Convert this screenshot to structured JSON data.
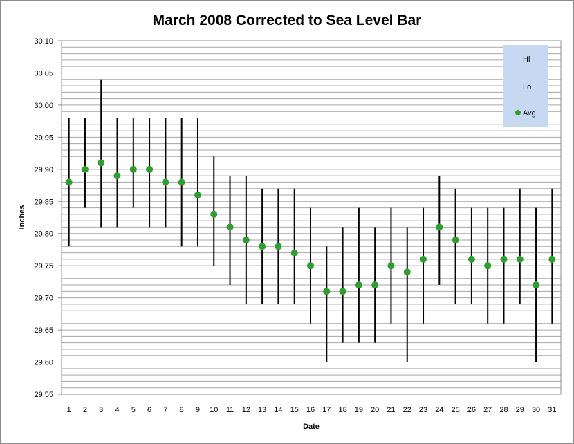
{
  "chart_data": {
    "type": "scatter",
    "title": "March 2008 Corrected to Sea Level Bar",
    "xlabel": "Date",
    "ylabel": "Inches",
    "ylim": [
      29.55,
      30.1
    ],
    "y_ticks": [
      "30.10",
      "30.05",
      "30.00",
      "29.95",
      "29.90",
      "29.85",
      "29.80",
      "29.75",
      "29.70",
      "29.65",
      "29.60",
      "29.55"
    ],
    "grid": "horizontal minor gridlines every 0.01",
    "legend_position": "top-right",
    "colors": {
      "avg": "#2e9e2e",
      "hilo": "#000000",
      "legend_bg": "#c6d9f1",
      "grid": "#a6a6a6"
    },
    "x": [
      1,
      2,
      3,
      4,
      5,
      6,
      7,
      8,
      9,
      10,
      11,
      12,
      13,
      14,
      15,
      16,
      17,
      18,
      19,
      20,
      21,
      22,
      23,
      24,
      25,
      26,
      27,
      28,
      29,
      30,
      31
    ],
    "series": [
      {
        "name": "Hi",
        "values": [
          29.98,
          29.98,
          30.04,
          29.98,
          29.98,
          29.98,
          29.98,
          29.98,
          29.98,
          29.92,
          29.89,
          29.89,
          29.87,
          29.87,
          29.87,
          29.84,
          29.78,
          29.81,
          29.84,
          29.81,
          29.84,
          29.81,
          29.84,
          29.89,
          29.87,
          29.84,
          29.84,
          29.84,
          29.87,
          29.84,
          29.87
        ]
      },
      {
        "name": "Lo",
        "values": [
          29.78,
          29.84,
          29.81,
          29.81,
          29.84,
          29.81,
          29.81,
          29.78,
          29.78,
          29.75,
          29.72,
          29.69,
          29.69,
          29.69,
          29.69,
          29.66,
          29.6,
          29.63,
          29.63,
          29.63,
          29.66,
          29.6,
          29.66,
          29.72,
          29.69,
          29.69,
          29.66,
          29.66,
          29.69,
          29.6,
          29.66
        ]
      },
      {
        "name": "Avg",
        "values": [
          29.88,
          29.9,
          29.91,
          29.89,
          29.9,
          29.9,
          29.88,
          29.88,
          29.86,
          29.83,
          29.81,
          29.79,
          29.78,
          29.78,
          29.77,
          29.75,
          29.71,
          29.71,
          29.72,
          29.72,
          29.75,
          29.74,
          29.76,
          29.81,
          29.79,
          29.76,
          29.75,
          29.76,
          29.76,
          29.72,
          29.76
        ]
      }
    ]
  }
}
